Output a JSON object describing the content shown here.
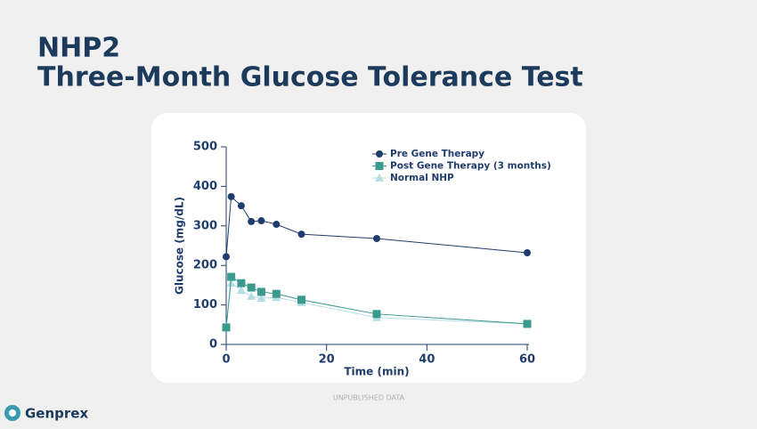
{
  "slide": {
    "title": [
      "NHP2",
      "Three-Month Glucose Tolerance Test"
    ],
    "note": "UNPUBLISHED DATA",
    "logo": "Genprex"
  },
  "chart_data": {
    "type": "line",
    "x_label": "Time (min)",
    "y_label": "Glucose (mg/dL)",
    "x": [
      0,
      1,
      3,
      5,
      7,
      10,
      15,
      30,
      60
    ],
    "series": [
      {
        "name": "Pre Gene Therapy",
        "color": "#1f3d6b",
        "marker": "circle",
        "values": [
          222,
          374,
          351,
          311,
          313,
          304,
          279,
          268,
          232
        ]
      },
      {
        "name": "Post Gene Therapy (3 months)",
        "color": "#3a9a8e",
        "marker": "square",
        "values": [
          43,
          171,
          155,
          144,
          133,
          128,
          113,
          77,
          52
        ]
      },
      {
        "name": "Normal NHP",
        "color": "#b5dde3",
        "marker": "triangle",
        "values": [
          45,
          155,
          137,
          122,
          117,
          119,
          106,
          68,
          52
        ]
      }
    ],
    "xlim": [
      0,
      60
    ],
    "xticks": [
      0,
      20,
      40,
      60
    ],
    "ylim": [
      0,
      500
    ],
    "yticks": [
      0,
      100,
      200,
      300,
      400,
      500
    ],
    "grid": false,
    "legend": "top-right"
  }
}
